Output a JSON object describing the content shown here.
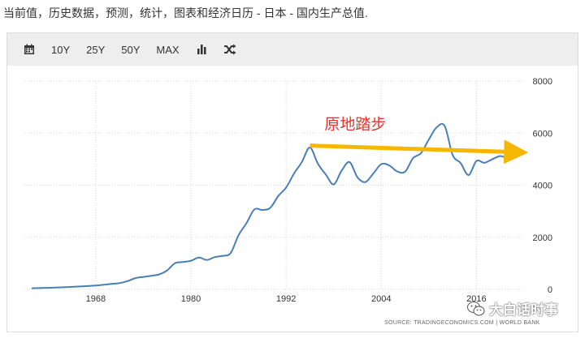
{
  "page": {
    "title": "当前值，历史数据，预测，统计，图表和经济日历 - 日本 - 国内生产总值."
  },
  "toolbar": {
    "items": [
      {
        "name": "calendar-icon",
        "icon": "calendar"
      },
      {
        "name": "range-10y-button",
        "label": "10Y"
      },
      {
        "name": "range-25y-button",
        "label": "25Y"
      },
      {
        "name": "range-50y-button",
        "label": "50Y"
      },
      {
        "name": "range-max-button",
        "label": "MAX"
      },
      {
        "name": "bar-chart-icon",
        "icon": "bar-chart"
      },
      {
        "name": "shuffle-icon",
        "icon": "shuffle"
      }
    ]
  },
  "source": "SOURCE: TRADINGECONOMICS.COM  |  WORLD BANK",
  "watermark": "大白话时事",
  "chart_data": {
    "type": "line",
    "series": [
      {
        "color": "#4a7fb5",
        "x": [
          1960,
          1962,
          1964,
          1966,
          1968,
          1970,
          1971,
          1972,
          1973,
          1974,
          1975,
          1976,
          1977,
          1978,
          1979,
          1980,
          1981,
          1982,
          1983,
          1984,
          1985,
          1986,
          1987,
          1988,
          1989,
          1990,
          1991,
          1992,
          1993,
          1994,
          1995,
          1996,
          1997,
          1998,
          1999,
          2000,
          2001,
          2002,
          2003,
          2004,
          2005,
          2006,
          2007,
          2008,
          2009,
          2010,
          2011,
          2012,
          2013,
          2014,
          2015,
          2016,
          2017,
          2018,
          2019,
          2020,
          2021
        ],
        "y": [
          44,
          60,
          82,
          113,
          147,
          212,
          240,
          318,
          432,
          479,
          521,
          577,
          727,
          1010,
          1050,
          1100,
          1220,
          1130,
          1240,
          1290,
          1390,
          2080,
          2540,
          3070,
          3050,
          3130,
          3580,
          3910,
          4450,
          4900,
          5450,
          4830,
          4410,
          4030,
          4560,
          4890,
          4300,
          4120,
          4450,
          4810,
          4760,
          4530,
          4520,
          5040,
          5230,
          5760,
          6230,
          6270,
          5160,
          4850,
          4390,
          4930,
          4860,
          5000,
          5120,
          5050,
          5260
        ]
      }
    ],
    "xticks": [
      "1968",
      "1980",
      "1992",
      "2004",
      "2016"
    ],
    "yticks": [
      "0",
      "2000",
      "4000",
      "6000",
      "8000"
    ],
    "xlim": [
      1959,
      2022
    ],
    "ylim": [
      0,
      8000
    ],
    "annotation": {
      "text": "原地踏步",
      "color": "#e8332a",
      "arrow_color": "#f5b700",
      "arrow_from": [
        1995,
        5520
      ],
      "arrow_to": [
        2021,
        5280
      ]
    },
    "grid": true,
    "y_axis_side": "right"
  }
}
